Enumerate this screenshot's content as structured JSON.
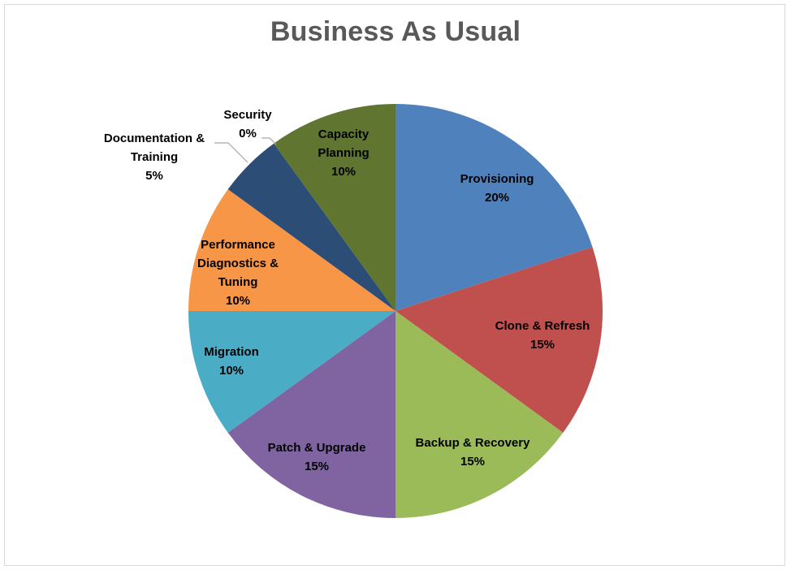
{
  "chart_data": {
    "type": "pie",
    "title": "Business As Usual",
    "slices": [
      {
        "label": "Provisioning",
        "lines": [
          "Provisioning"
        ],
        "value": 20,
        "percent_label": "20%",
        "color": "#4F81BD",
        "text_color": "#000000"
      },
      {
        "label": "Clone & Refresh",
        "lines": [
          "Clone & Refresh"
        ],
        "value": 15,
        "percent_label": "15%",
        "color": "#C0504D",
        "text_color": "#000000"
      },
      {
        "label": "Backup & Recovery",
        "lines": [
          "Backup & Recovery"
        ],
        "value": 15,
        "percent_label": "15%",
        "color": "#9BBB59",
        "text_color": "#000000"
      },
      {
        "label": "Patch & Upgrade",
        "lines": [
          "Patch & Upgrade"
        ],
        "value": 15,
        "percent_label": "15%",
        "color": "#8064A2",
        "text_color": "#000000"
      },
      {
        "label": "Migration",
        "lines": [
          "Migration"
        ],
        "value": 10,
        "percent_label": "10%",
        "color": "#4BACC6",
        "text_color": "#000000"
      },
      {
        "label": "Performance Diagnostics & Tuning",
        "lines": [
          "Performance",
          "Diagnostics &",
          "Tuning"
        ],
        "value": 10,
        "percent_label": "10%",
        "color": "#F79646",
        "text_color": "#000000"
      },
      {
        "label": "Documentation & Training",
        "lines": [
          "Documentation &",
          "Training"
        ],
        "value": 5,
        "percent_label": "5%",
        "color": "#2C4D75",
        "text_color": "#000000"
      },
      {
        "label": "Security",
        "lines": [
          "Security"
        ],
        "value": 0,
        "percent_label": "0%",
        "color": "#772C2A",
        "text_color": "#000000"
      },
      {
        "label": "Capacity Planning",
        "lines": [
          "Capacity",
          "Planning"
        ],
        "value": 10,
        "percent_label": "10%",
        "color": "#5F7530",
        "text_color": "#000000"
      }
    ],
    "start_angle": "12 o'clock",
    "direction": "clockwise",
    "legend": "none",
    "data_labels": "category name and percentage"
  }
}
